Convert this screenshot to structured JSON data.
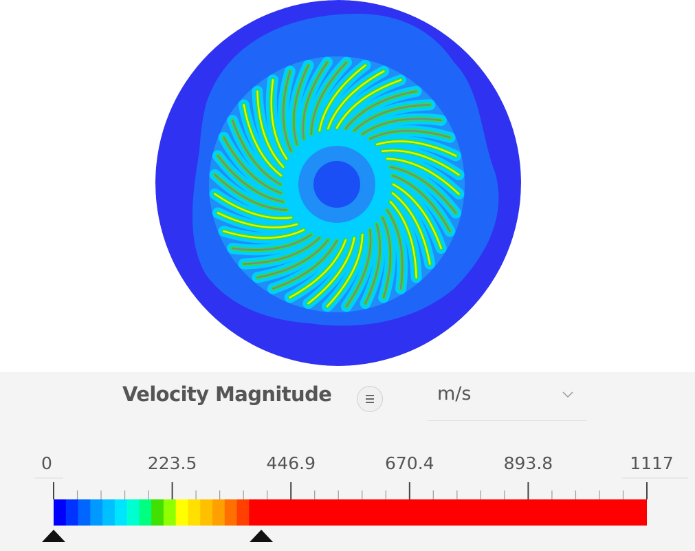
{
  "legend": {
    "title": "Velocity Magnitude",
    "menu_icon": "menu-lines-icon",
    "unit": "m/s",
    "dropdown_icon": "chevron-down-icon",
    "tick_labels": [
      "0",
      "223.5",
      "446.9",
      "670.4",
      "893.8",
      "1117"
    ],
    "range": [
      0,
      1117
    ],
    "lower_handle_value": 0,
    "upper_handle_value": 391,
    "colormap": [
      "#0000ff",
      "#0033ff",
      "#0066ff",
      "#0099ff",
      "#00c0ff",
      "#00e5ff",
      "#00ffd0",
      "#00ff80",
      "#40e000",
      "#90ff00",
      "#ffff00",
      "#ffe000",
      "#ffc000",
      "#ffa000",
      "#ff7000",
      "#ff4000",
      "#ff0000"
    ],
    "saturated_color": "#ff0000"
  },
  "viewport": {
    "field": "Velocity Magnitude",
    "colors": {
      "background": "#2f32f0",
      "outer": "#1f66f8",
      "mid": "#1f8ff7",
      "blade": "#00cfff",
      "blade_hot": "#f2f000",
      "blade_green": "#30e030",
      "hub": "#1a4ff5"
    },
    "blade_count": 40
  }
}
